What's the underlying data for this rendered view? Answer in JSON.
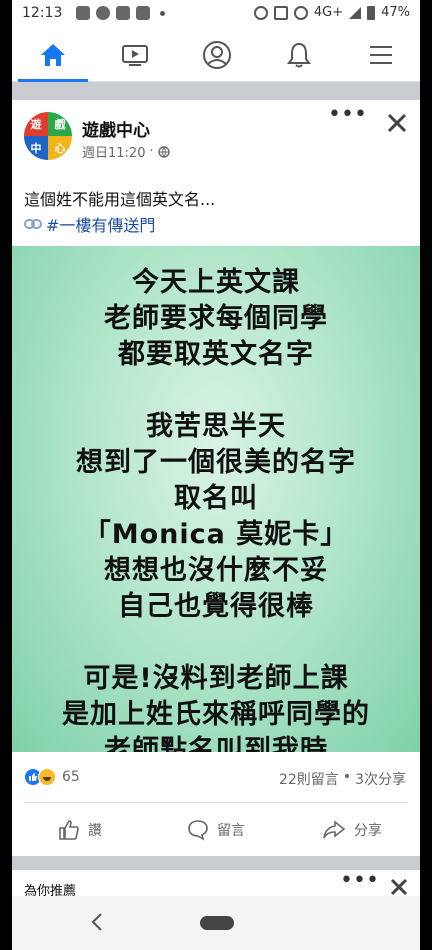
{
  "status_bar": {
    "time": "12:13",
    "network": "4G+",
    "battery": "47%"
  },
  "nav": {
    "items": [
      {
        "icon": "home-icon",
        "active": true
      },
      {
        "icon": "watch-video-icon",
        "active": false
      },
      {
        "icon": "profile-icon",
        "active": false
      },
      {
        "icon": "bell-icon",
        "active": false
      },
      {
        "icon": "menu-icon",
        "active": false
      }
    ],
    "accent": "#1877f2"
  },
  "post": {
    "page_name": "遊戲中心",
    "avatar_chars": [
      "遊",
      "戲",
      "中",
      "心"
    ],
    "avatar_colors": [
      "#e23c2e",
      "#2aa84a",
      "#1e63c7",
      "#f3b41b"
    ],
    "time": "週日11:20",
    "privacy": "·",
    "text": "這個姓不能用這個英文名...",
    "link_text": "#一樓有傳送門",
    "image_lines": [
      "今天上英文課",
      "老師要求每個同學",
      "都要取英文名字",
      "",
      "我苦思半天",
      "想到了一個很美的名字",
      "取名叫",
      "「Monica  莫妮卡」",
      "想想也沒什麼不妥",
      "自己也覺得很棒",
      "",
      "可是!沒料到老師上課",
      "是加上姓氏來稱呼同學的",
      "老師點名叫到我時"
    ],
    "reaction_count": "65",
    "comments": "22則留言",
    "separator": "•",
    "shares": "3次分享",
    "actions": {
      "like": "讚",
      "comment": "留言",
      "share": "分享"
    }
  },
  "recommended": {
    "title": "為你推薦"
  }
}
